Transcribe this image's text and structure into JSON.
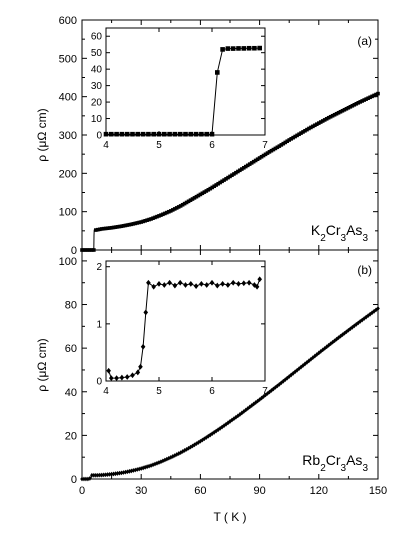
{
  "chart_data": [
    {
      "type": "scatter",
      "panel_label": "(a)",
      "compound": {
        "base": "K",
        "s1": "2",
        "mid": "Cr",
        "s2": "3",
        "end": "As",
        "s3": "3"
      },
      "xlabel": "T ( K )",
      "ylabel": "ρ (μΩ cm)",
      "xlim": [
        0,
        150
      ],
      "ylim": [
        0,
        600
      ],
      "xticks": [
        "0",
        "30",
        "60",
        "90",
        "120",
        "150"
      ],
      "yticks": [
        "0",
        "100",
        "200",
        "300",
        "400",
        "500",
        "600"
      ],
      "x": [
        0,
        4,
        6.0,
        6.1,
        6.2,
        7,
        10,
        15,
        20,
        25,
        30,
        35,
        40,
        45,
        50,
        55,
        60,
        65,
        70,
        75,
        80,
        85,
        90,
        95,
        100,
        105,
        110,
        115,
        120,
        125,
        130,
        135,
        140,
        145,
        150
      ],
      "y": [
        0,
        0,
        0,
        38,
        52,
        52,
        55,
        58,
        62,
        67,
        73,
        81,
        91,
        102,
        115,
        130,
        145,
        160,
        176,
        192,
        208,
        224,
        240,
        256,
        271,
        287,
        302,
        317,
        331,
        345,
        358,
        371,
        384,
        396,
        408
      ],
      "inset": {
        "xlim": [
          4,
          7
        ],
        "ylim": [
          0,
          65
        ],
        "xticks": [
          "4",
          "5",
          "6",
          "7"
        ],
        "yticks": [
          "0",
          "10",
          "20",
          "30",
          "40",
          "50",
          "60"
        ],
        "x": [
          4.0,
          4.1,
          4.2,
          4.3,
          4.4,
          4.5,
          4.6,
          4.7,
          4.8,
          4.9,
          5.0,
          5.1,
          5.2,
          5.3,
          5.4,
          5.5,
          5.6,
          5.7,
          5.8,
          5.9,
          6.0,
          6.1,
          6.2,
          6.3,
          6.4,
          6.5,
          6.6,
          6.7,
          6.8,
          6.9
        ],
        "y": [
          0.5,
          0.5,
          0.5,
          0.5,
          0.5,
          0.5,
          0.5,
          0.5,
          0.5,
          0.5,
          0.5,
          0.5,
          0.5,
          0.5,
          0.5,
          0.5,
          0.5,
          0.5,
          0.5,
          0.5,
          0.5,
          38,
          52,
          52.5,
          52.5,
          52.6,
          52.6,
          52.7,
          52.7,
          52.8
        ]
      }
    },
    {
      "type": "scatter",
      "panel_label": "(b)",
      "compound": {
        "base": "Rb",
        "s1": "2",
        "mid": "Cr",
        "s2": "3",
        "end": "As",
        "s3": "3"
      },
      "xlabel": "T ( K )",
      "ylabel": "ρ (μΩ cm)",
      "xlim": [
        0,
        150
      ],
      "ylim": [
        0,
        105
      ],
      "xticks": [
        "0",
        "30",
        "60",
        "90",
        "120",
        "150"
      ],
      "yticks": [
        "0",
        "20",
        "40",
        "60",
        "80",
        "100"
      ],
      "x": [
        0,
        3,
        4.5,
        4.8,
        5,
        7,
        10,
        15,
        20,
        25,
        30,
        35,
        40,
        45,
        50,
        55,
        60,
        65,
        70,
        75,
        80,
        85,
        90,
        95,
        100,
        105,
        110,
        115,
        120,
        125,
        130,
        135,
        140,
        145,
        150
      ],
      "y": [
        0,
        0,
        0.4,
        1.5,
        1.7,
        1.7,
        1.8,
        2.2,
        2.8,
        3.7,
        4.8,
        6.2,
        7.9,
        9.9,
        12.1,
        14.6,
        17.3,
        20.2,
        23.2,
        26.4,
        29.6,
        33.0,
        36.4,
        39.9,
        43.4,
        47.0,
        50.6,
        54.2,
        57.8,
        61.3,
        64.8,
        68.2,
        71.6,
        74.9,
        78.2
      ],
      "inset": {
        "xlim": [
          4,
          7
        ],
        "ylim": [
          0,
          2.1
        ],
        "xticks": [
          "4",
          "5",
          "6",
          "7"
        ],
        "yticks": [
          "0",
          "1",
          "2"
        ],
        "x": [
          4.05,
          4.1,
          4.2,
          4.3,
          4.4,
          4.5,
          4.6,
          4.65,
          4.7,
          4.75,
          4.8,
          4.9,
          5.0,
          5.1,
          5.2,
          5.3,
          5.4,
          5.5,
          5.6,
          5.7,
          5.8,
          5.9,
          6.0,
          6.1,
          6.2,
          6.3,
          6.4,
          6.5,
          6.6,
          6.7,
          6.8,
          6.85,
          6.9
        ],
        "y": [
          0.18,
          0.05,
          0.05,
          0.06,
          0.07,
          0.1,
          0.15,
          0.25,
          0.6,
          1.2,
          1.72,
          1.65,
          1.7,
          1.68,
          1.72,
          1.67,
          1.72,
          1.68,
          1.7,
          1.66,
          1.7,
          1.68,
          1.72,
          1.67,
          1.7,
          1.68,
          1.72,
          1.7,
          1.71,
          1.72,
          1.68,
          1.65,
          1.78
        ]
      }
    }
  ]
}
